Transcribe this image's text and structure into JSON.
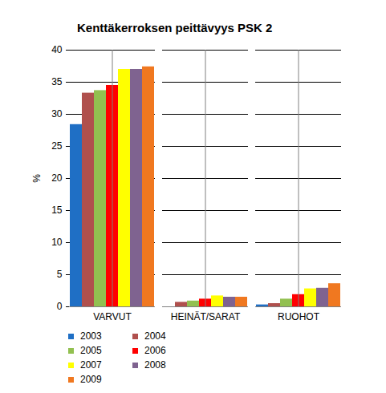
{
  "chart_data": {
    "type": "bar",
    "title": "Kenttäkerroksen peittävyys PSK 2",
    "y_label": "%",
    "categories": [
      "VARVUT",
      "HEINÄT/SARAT",
      "RUOHOT"
    ],
    "series": [
      {
        "name": "2003",
        "color": "#1F6FC5",
        "values": [
          28.4,
          0,
          0.3
        ]
      },
      {
        "name": "2004",
        "color": "#B0504D",
        "values": [
          33.3,
          0.7,
          0.5
        ]
      },
      {
        "name": "2005",
        "color": "#92C050",
        "values": [
          33.7,
          0.9,
          1.2
        ]
      },
      {
        "name": "2006",
        "color": "#FF0000",
        "values": [
          34.5,
          1.2,
          1.9
        ]
      },
      {
        "name": "2007",
        "color": "#FFFF00",
        "values": [
          37.0,
          1.7,
          2.8
        ]
      },
      {
        "name": "2008",
        "color": "#7F6390",
        "values": [
          37.0,
          1.5,
          2.9
        ]
      },
      {
        "name": "2009",
        "color": "#F07820",
        "values": [
          37.4,
          1.5,
          3.6
        ]
      }
    ],
    "ylim": [
      0,
      40
    ],
    "yticks": [
      0,
      5,
      10,
      15,
      20,
      25,
      30,
      35,
      40
    ],
    "grid": true,
    "legend": "bottom"
  }
}
